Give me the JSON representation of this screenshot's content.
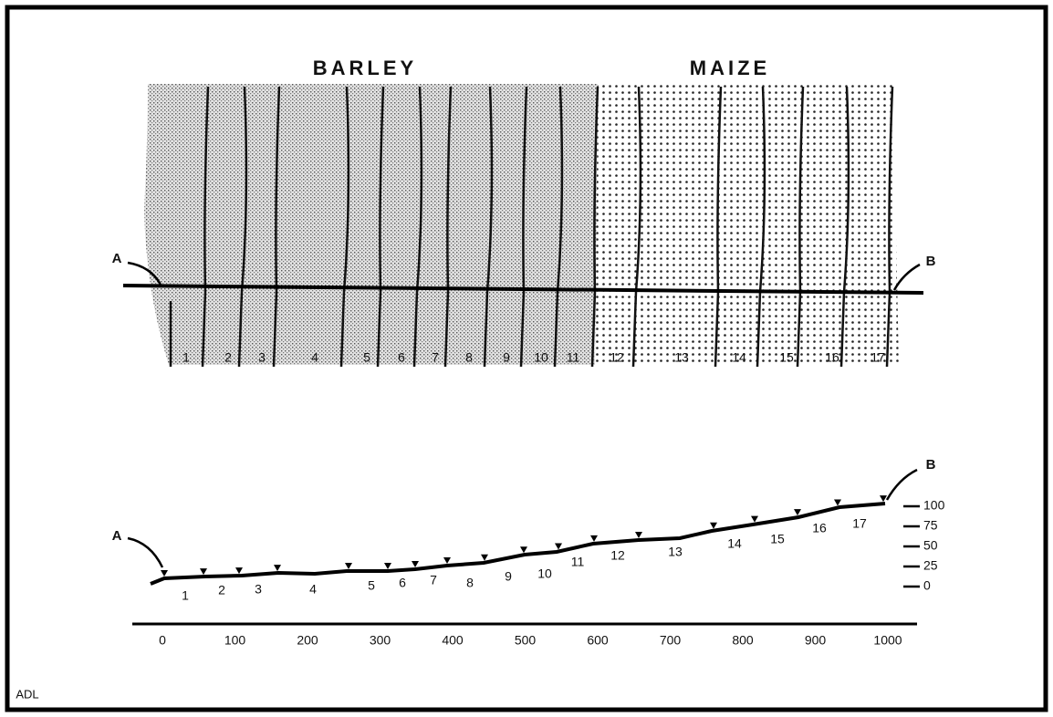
{
  "title_labels": {
    "left": "BARLEY",
    "right": "MAIZE"
  },
  "plan": {
    "start": "A",
    "end": "B",
    "plots": [
      1,
      2,
      3,
      4,
      5,
      6,
      7,
      8,
      9,
      10,
      11,
      12,
      13,
      14,
      15,
      16,
      17
    ]
  },
  "profile": {
    "start": "A",
    "end": "B",
    "plots": [
      1,
      2,
      3,
      4,
      5,
      6,
      7,
      8,
      9,
      10,
      11,
      12,
      13,
      14,
      15,
      16,
      17
    ],
    "x_ticks": [
      0,
      100,
      200,
      300,
      400,
      500,
      600,
      700,
      800,
      900,
      1000
    ],
    "y_ticks": [
      100,
      75,
      50,
      25,
      0
    ]
  },
  "credit": "ADL"
}
